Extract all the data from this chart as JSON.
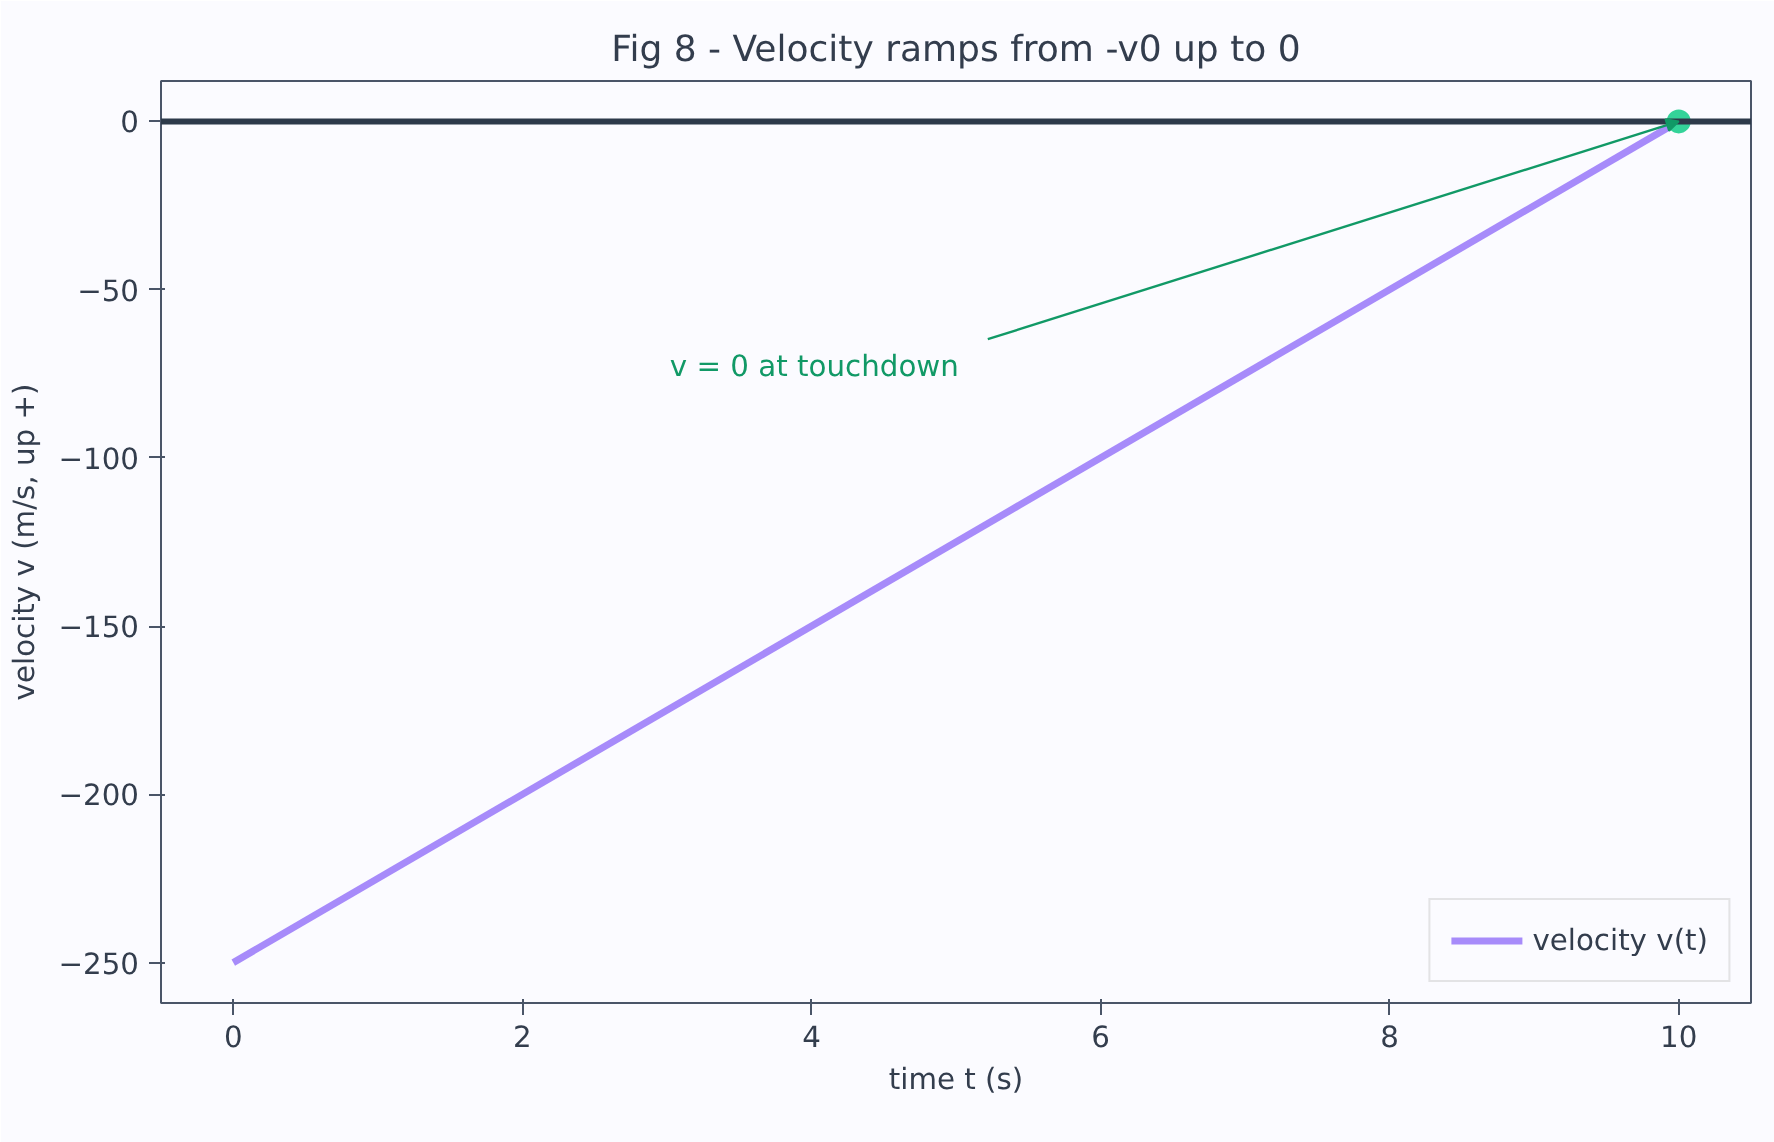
{
  "chart_data": {
    "type": "line",
    "title": "Fig 8 - Velocity ramps from -v0 up to 0",
    "xlabel": "time t (s)",
    "ylabel": "velocity v (m/s, up +)",
    "x": [
      0,
      10
    ],
    "series": [
      {
        "name": "velocity v(t)",
        "color": "#a78bfa",
        "values": [
          -250,
          0
        ]
      },
      {
        "type": "scatter",
        "color": "#34d399",
        "x": [
          10
        ],
        "values": [
          0
        ],
        "marker": "circle"
      }
    ],
    "xlim": [
      -0.5,
      10.5
    ],
    "ylim": [
      -262,
      12
    ],
    "xticks": [
      0,
      2,
      4,
      6,
      8,
      10
    ],
    "yticks": [
      -250,
      -200,
      -150,
      -100,
      -50,
      0
    ],
    "ref_lines": [
      {
        "axis": "y",
        "value": 0,
        "color": "#2d3a4a"
      }
    ],
    "annotations": [
      {
        "text": "v = 0 at touchdown",
        "x": 10,
        "y": 0
      }
    ],
    "grid": false,
    "legend": "bottom right",
    "marker": "none",
    "line_style": "solid"
  }
}
